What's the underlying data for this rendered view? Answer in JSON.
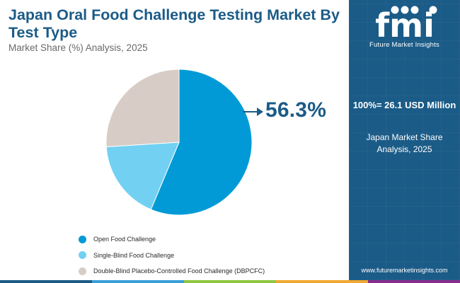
{
  "header": {
    "title": "Japan Oral Food Challenge Testing Market By Test Type",
    "subtitle": "Market Share (%) Analysis, 2025"
  },
  "callout": {
    "value": "56.3%"
  },
  "sidebar": {
    "logo_text": "fmi",
    "logo_caption": "Future Market Insights",
    "total_label": "100%= 26.1 USD Million",
    "total_sublabel": "Japan Market Share Analysis, 2025",
    "website": "www.futuremarketinsights.com"
  },
  "colors": {
    "brand": "#1b5b87",
    "bottom_bar": [
      "#1b5b87",
      "#3a9fd8",
      "#8dc63f",
      "#f0a830",
      "#8a2b8e"
    ]
  },
  "chart_data": {
    "type": "pie",
    "title": "Japan Oral Food Challenge Testing Market By Test Type",
    "subtitle": "Market Share (%) Analysis, 2025",
    "start_angle_deg": 0,
    "direction": "clockwise",
    "legend_position": "bottom-left",
    "series": [
      {
        "name": "Open Food Challenge",
        "value": 56.3,
        "color": "#019ad6"
      },
      {
        "name": "Single-Blind Food Challenge",
        "value": 17.7,
        "color": "#72d1f2"
      },
      {
        "name": "Double-Blind Placebo-Controlled Food Challenge (DBPCFC)",
        "value": 26.0,
        "color": "#d7cdc6"
      }
    ]
  }
}
